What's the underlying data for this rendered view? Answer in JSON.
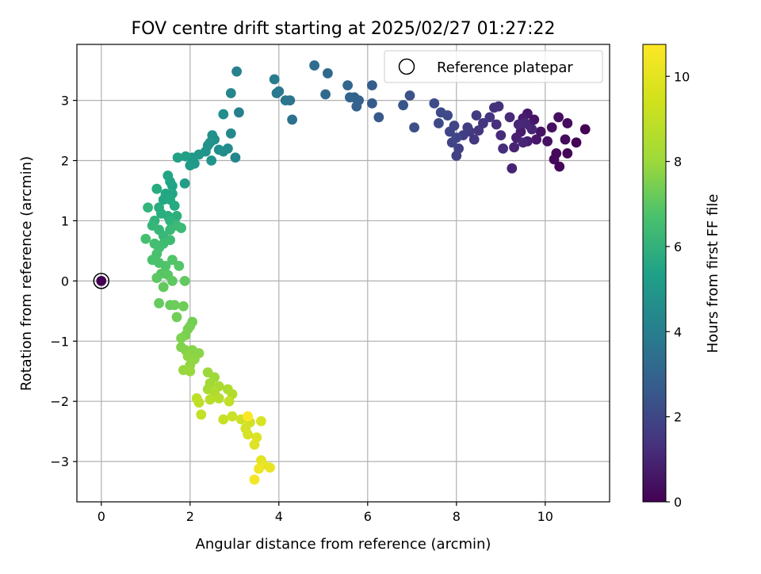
{
  "chart_data": {
    "type": "scatter",
    "title": "FOV centre drift starting at 2025/02/27 01:27:22",
    "xlabel": "Angular distance from reference (arcmin)",
    "ylabel": "Rotation from reference (arcmin)",
    "xlim": [
      -0.55,
      11.45
    ],
    "ylim": [
      -3.67,
      3.93
    ],
    "xticks": [
      0,
      2,
      4,
      6,
      8,
      10
    ],
    "yticks": [
      -3,
      -2,
      -1,
      0,
      1,
      2,
      3
    ],
    "xtick_labels": [
      "0",
      "2",
      "4",
      "6",
      "8",
      "10"
    ],
    "ytick_labels": [
      "−3",
      "−2",
      "−1",
      "0",
      "1",
      "2",
      "3"
    ],
    "grid": true,
    "legend": {
      "placement": "top-right",
      "entries": [
        "Reference platepar"
      ]
    },
    "colorbar": {
      "label": "Hours from first FF file",
      "range": [
        0,
        10.75
      ],
      "ticks": [
        0,
        2,
        4,
        6,
        8,
        10
      ],
      "tick_labels": [
        "0",
        "2",
        "4",
        "6",
        "8",
        "10"
      ],
      "colormap": "viridis"
    },
    "reference_point": {
      "x": 0,
      "y": 0,
      "hours": 0
    },
    "series": [
      {
        "points": [
          [
            10.9,
            2.52,
            0.0
          ],
          [
            10.7,
            2.3,
            0.05
          ],
          [
            10.5,
            2.12,
            0.1
          ],
          [
            10.32,
            1.9,
            0.15
          ],
          [
            10.2,
            2.02,
            0.2
          ],
          [
            10.25,
            2.12,
            0.25
          ],
          [
            10.45,
            2.35,
            0.3
          ],
          [
            10.5,
            2.62,
            0.35
          ],
          [
            10.3,
            2.72,
            0.4
          ],
          [
            10.15,
            2.55,
            0.45
          ],
          [
            10.05,
            2.32,
            0.5
          ],
          [
            9.9,
            2.48,
            0.55
          ],
          [
            9.75,
            2.68,
            0.6
          ],
          [
            9.6,
            2.78,
            0.65
          ],
          [
            9.8,
            2.35,
            0.7
          ],
          [
            9.65,
            2.58,
            0.75
          ],
          [
            9.5,
            2.7,
            0.8
          ],
          [
            9.45,
            2.48,
            0.85
          ],
          [
            9.6,
            2.32,
            0.9
          ],
          [
            9.35,
            2.38,
            0.95
          ],
          [
            9.3,
            2.22,
            1.0
          ],
          [
            9.25,
            1.87,
            1.05
          ],
          [
            9.5,
            2.3,
            1.1
          ],
          [
            9.7,
            2.52,
            1.15
          ],
          [
            9.55,
            2.62,
            1.2
          ],
          [
            9.4,
            2.6,
            1.25
          ],
          [
            9.2,
            2.72,
            1.3
          ],
          [
            9.0,
            2.42,
            1.35
          ],
          [
            9.05,
            2.2,
            1.4
          ],
          [
            8.9,
            2.6,
            1.45
          ],
          [
            8.95,
            2.9,
            1.5
          ],
          [
            8.85,
            2.88,
            1.55
          ],
          [
            8.75,
            2.72,
            1.6
          ],
          [
            8.6,
            2.62,
            1.65
          ],
          [
            8.5,
            2.5,
            1.7
          ],
          [
            8.4,
            2.35,
            1.75
          ],
          [
            8.3,
            2.48,
            1.8
          ],
          [
            8.45,
            2.75,
            1.85
          ],
          [
            8.25,
            2.55,
            1.9
          ],
          [
            8.15,
            2.42,
            1.95
          ],
          [
            8.05,
            2.2,
            2.0
          ],
          [
            8.0,
            2.08,
            2.05
          ],
          [
            7.9,
            2.3,
            2.1
          ],
          [
            7.85,
            2.48,
            2.15
          ],
          [
            7.95,
            2.58,
            2.2
          ],
          [
            8.0,
            2.38,
            2.25
          ],
          [
            7.8,
            2.75,
            2.3
          ],
          [
            7.65,
            2.8,
            2.35
          ],
          [
            7.6,
            2.62,
            2.4
          ],
          [
            7.5,
            2.95,
            2.45
          ],
          [
            7.05,
            2.55,
            2.55
          ],
          [
            6.95,
            3.08,
            2.7
          ],
          [
            6.8,
            2.92,
            2.85
          ],
          [
            6.25,
            2.72,
            3.0
          ],
          [
            6.1,
            2.95,
            3.1
          ],
          [
            6.1,
            3.25,
            3.2
          ],
          [
            5.8,
            3.0,
            3.3
          ],
          [
            5.75,
            2.9,
            3.35
          ],
          [
            5.7,
            3.05,
            3.4
          ],
          [
            5.6,
            3.05,
            3.5
          ],
          [
            5.55,
            3.25,
            3.55
          ],
          [
            5.1,
            3.45,
            3.65
          ],
          [
            5.05,
            3.1,
            3.75
          ],
          [
            4.8,
            3.58,
            3.85
          ],
          [
            4.3,
            2.68,
            4.0
          ],
          [
            4.25,
            3.0,
            4.1
          ],
          [
            4.15,
            3.0,
            4.2
          ],
          [
            4.0,
            3.15,
            4.3
          ],
          [
            3.95,
            3.12,
            4.35
          ],
          [
            3.9,
            3.35,
            4.45
          ],
          [
            3.1,
            2.8,
            4.6
          ],
          [
            3.05,
            3.48,
            4.7
          ],
          [
            3.02,
            2.05,
            4.85
          ],
          [
            2.92,
            3.12,
            4.95
          ],
          [
            2.92,
            2.45,
            5.05
          ],
          [
            2.85,
            2.2,
            5.1
          ],
          [
            2.75,
            2.15,
            5.15
          ],
          [
            2.75,
            2.77,
            5.2
          ],
          [
            2.65,
            2.18,
            5.25
          ],
          [
            2.55,
            2.35,
            5.3
          ],
          [
            2.5,
            2.42,
            5.35
          ],
          [
            2.45,
            2.3,
            5.4
          ],
          [
            2.4,
            2.25,
            5.45
          ],
          [
            2.35,
            2.15,
            5.5
          ],
          [
            2.48,
            2.0,
            5.55
          ],
          [
            2.2,
            2.1,
            5.6
          ],
          [
            2.1,
            1.95,
            5.7
          ],
          [
            2.05,
            2.05,
            5.75
          ],
          [
            2.0,
            1.92,
            5.85
          ],
          [
            1.88,
            1.62,
            5.95
          ],
          [
            1.9,
            2.07,
            6.05
          ],
          [
            1.72,
            2.05,
            6.1
          ],
          [
            1.6,
            1.58,
            6.2
          ],
          [
            1.5,
            1.75,
            6.25
          ],
          [
            1.55,
            1.65,
            6.3
          ],
          [
            1.6,
            1.45,
            6.35
          ],
          [
            1.45,
            1.45,
            6.4
          ],
          [
            1.4,
            1.35,
            6.45
          ],
          [
            1.55,
            1.35,
            6.5
          ],
          [
            1.65,
            1.25,
            6.55
          ],
          [
            1.25,
            1.53,
            6.6
          ],
          [
            1.3,
            1.22,
            6.65
          ],
          [
            1.35,
            1.12,
            6.7
          ],
          [
            1.5,
            1.08,
            6.75
          ],
          [
            1.7,
            1.08,
            6.8
          ],
          [
            1.65,
            0.95,
            6.85
          ],
          [
            1.55,
            1.0,
            6.9
          ],
          [
            1.2,
            1.0,
            6.95
          ],
          [
            1.05,
            1.22,
            7.0
          ],
          [
            1.15,
            0.92,
            7.05
          ],
          [
            1.3,
            0.85,
            7.1
          ],
          [
            1.4,
            0.75,
            7.15
          ],
          [
            1.55,
            0.85,
            7.2
          ],
          [
            1.7,
            0.92,
            7.25
          ],
          [
            1.8,
            0.88,
            7.3
          ],
          [
            1.55,
            0.68,
            7.35
          ],
          [
            1.4,
            0.62,
            7.4
          ],
          [
            1.3,
            0.55,
            7.45
          ],
          [
            1.2,
            0.62,
            7.5
          ],
          [
            1.0,
            0.7,
            7.55
          ],
          [
            1.25,
            0.45,
            7.6
          ],
          [
            1.15,
            0.35,
            7.65
          ],
          [
            1.3,
            0.3,
            7.7
          ],
          [
            1.45,
            0.25,
            7.75
          ],
          [
            1.6,
            0.35,
            7.8
          ],
          [
            1.75,
            0.25,
            7.85
          ],
          [
            1.35,
            0.12,
            7.9
          ],
          [
            1.5,
            0.1,
            7.95
          ],
          [
            1.25,
            0.05,
            8.0
          ],
          [
            1.6,
            0.0,
            8.05
          ],
          [
            1.88,
            0.0,
            8.1
          ],
          [
            1.4,
            -0.1,
            8.15
          ],
          [
            1.3,
            -0.37,
            8.2
          ],
          [
            1.55,
            -0.4,
            8.25
          ],
          [
            1.65,
            -0.4,
            8.3
          ],
          [
            1.85,
            -0.42,
            8.35
          ],
          [
            1.7,
            -0.6,
            8.4
          ],
          [
            2.05,
            -0.68,
            8.45
          ],
          [
            2.0,
            -0.75,
            8.5
          ],
          [
            1.95,
            -0.8,
            8.55
          ],
          [
            1.9,
            -0.9,
            8.6
          ],
          [
            1.8,
            -0.95,
            8.65
          ],
          [
            1.8,
            -1.1,
            8.7
          ],
          [
            1.9,
            -1.15,
            8.75
          ],
          [
            2.05,
            -1.15,
            8.8
          ],
          [
            2.2,
            -1.2,
            8.85
          ],
          [
            1.95,
            -1.25,
            8.9
          ],
          [
            2.1,
            -1.3,
            8.95
          ],
          [
            2.0,
            -1.4,
            9.0
          ],
          [
            1.85,
            -1.48,
            9.05
          ],
          [
            2.0,
            -1.5,
            9.1
          ],
          [
            2.4,
            -1.52,
            9.15
          ],
          [
            2.55,
            -1.6,
            9.2
          ],
          [
            2.45,
            -1.7,
            9.25
          ],
          [
            2.4,
            -1.8,
            9.3
          ],
          [
            2.65,
            -1.75,
            9.35
          ],
          [
            2.85,
            -1.8,
            9.4
          ],
          [
            2.55,
            -1.85,
            9.45
          ],
          [
            2.95,
            -1.88,
            9.5
          ],
          [
            2.65,
            -1.95,
            9.55
          ],
          [
            2.45,
            -1.97,
            9.6
          ],
          [
            2.15,
            -1.95,
            9.65
          ],
          [
            2.2,
            -2.02,
            9.7
          ],
          [
            2.88,
            -2.0,
            9.75
          ],
          [
            2.25,
            -2.22,
            9.8
          ],
          [
            2.75,
            -2.3,
            9.85
          ],
          [
            2.95,
            -2.25,
            9.9
          ],
          [
            3.15,
            -2.3,
            9.95
          ],
          [
            3.35,
            -2.35,
            10.0
          ],
          [
            3.25,
            -2.45,
            10.05
          ],
          [
            3.3,
            -2.55,
            10.1
          ],
          [
            3.6,
            -2.33,
            10.15
          ],
          [
            3.5,
            -2.6,
            10.2
          ],
          [
            3.45,
            -2.72,
            10.25
          ],
          [
            3.6,
            -2.98,
            10.3
          ],
          [
            3.65,
            -3.05,
            10.35
          ],
          [
            3.8,
            -3.1,
            10.4
          ],
          [
            3.55,
            -3.12,
            10.5
          ],
          [
            3.45,
            -3.3,
            10.6
          ],
          [
            3.3,
            -2.25,
            10.75
          ]
        ]
      }
    ]
  }
}
